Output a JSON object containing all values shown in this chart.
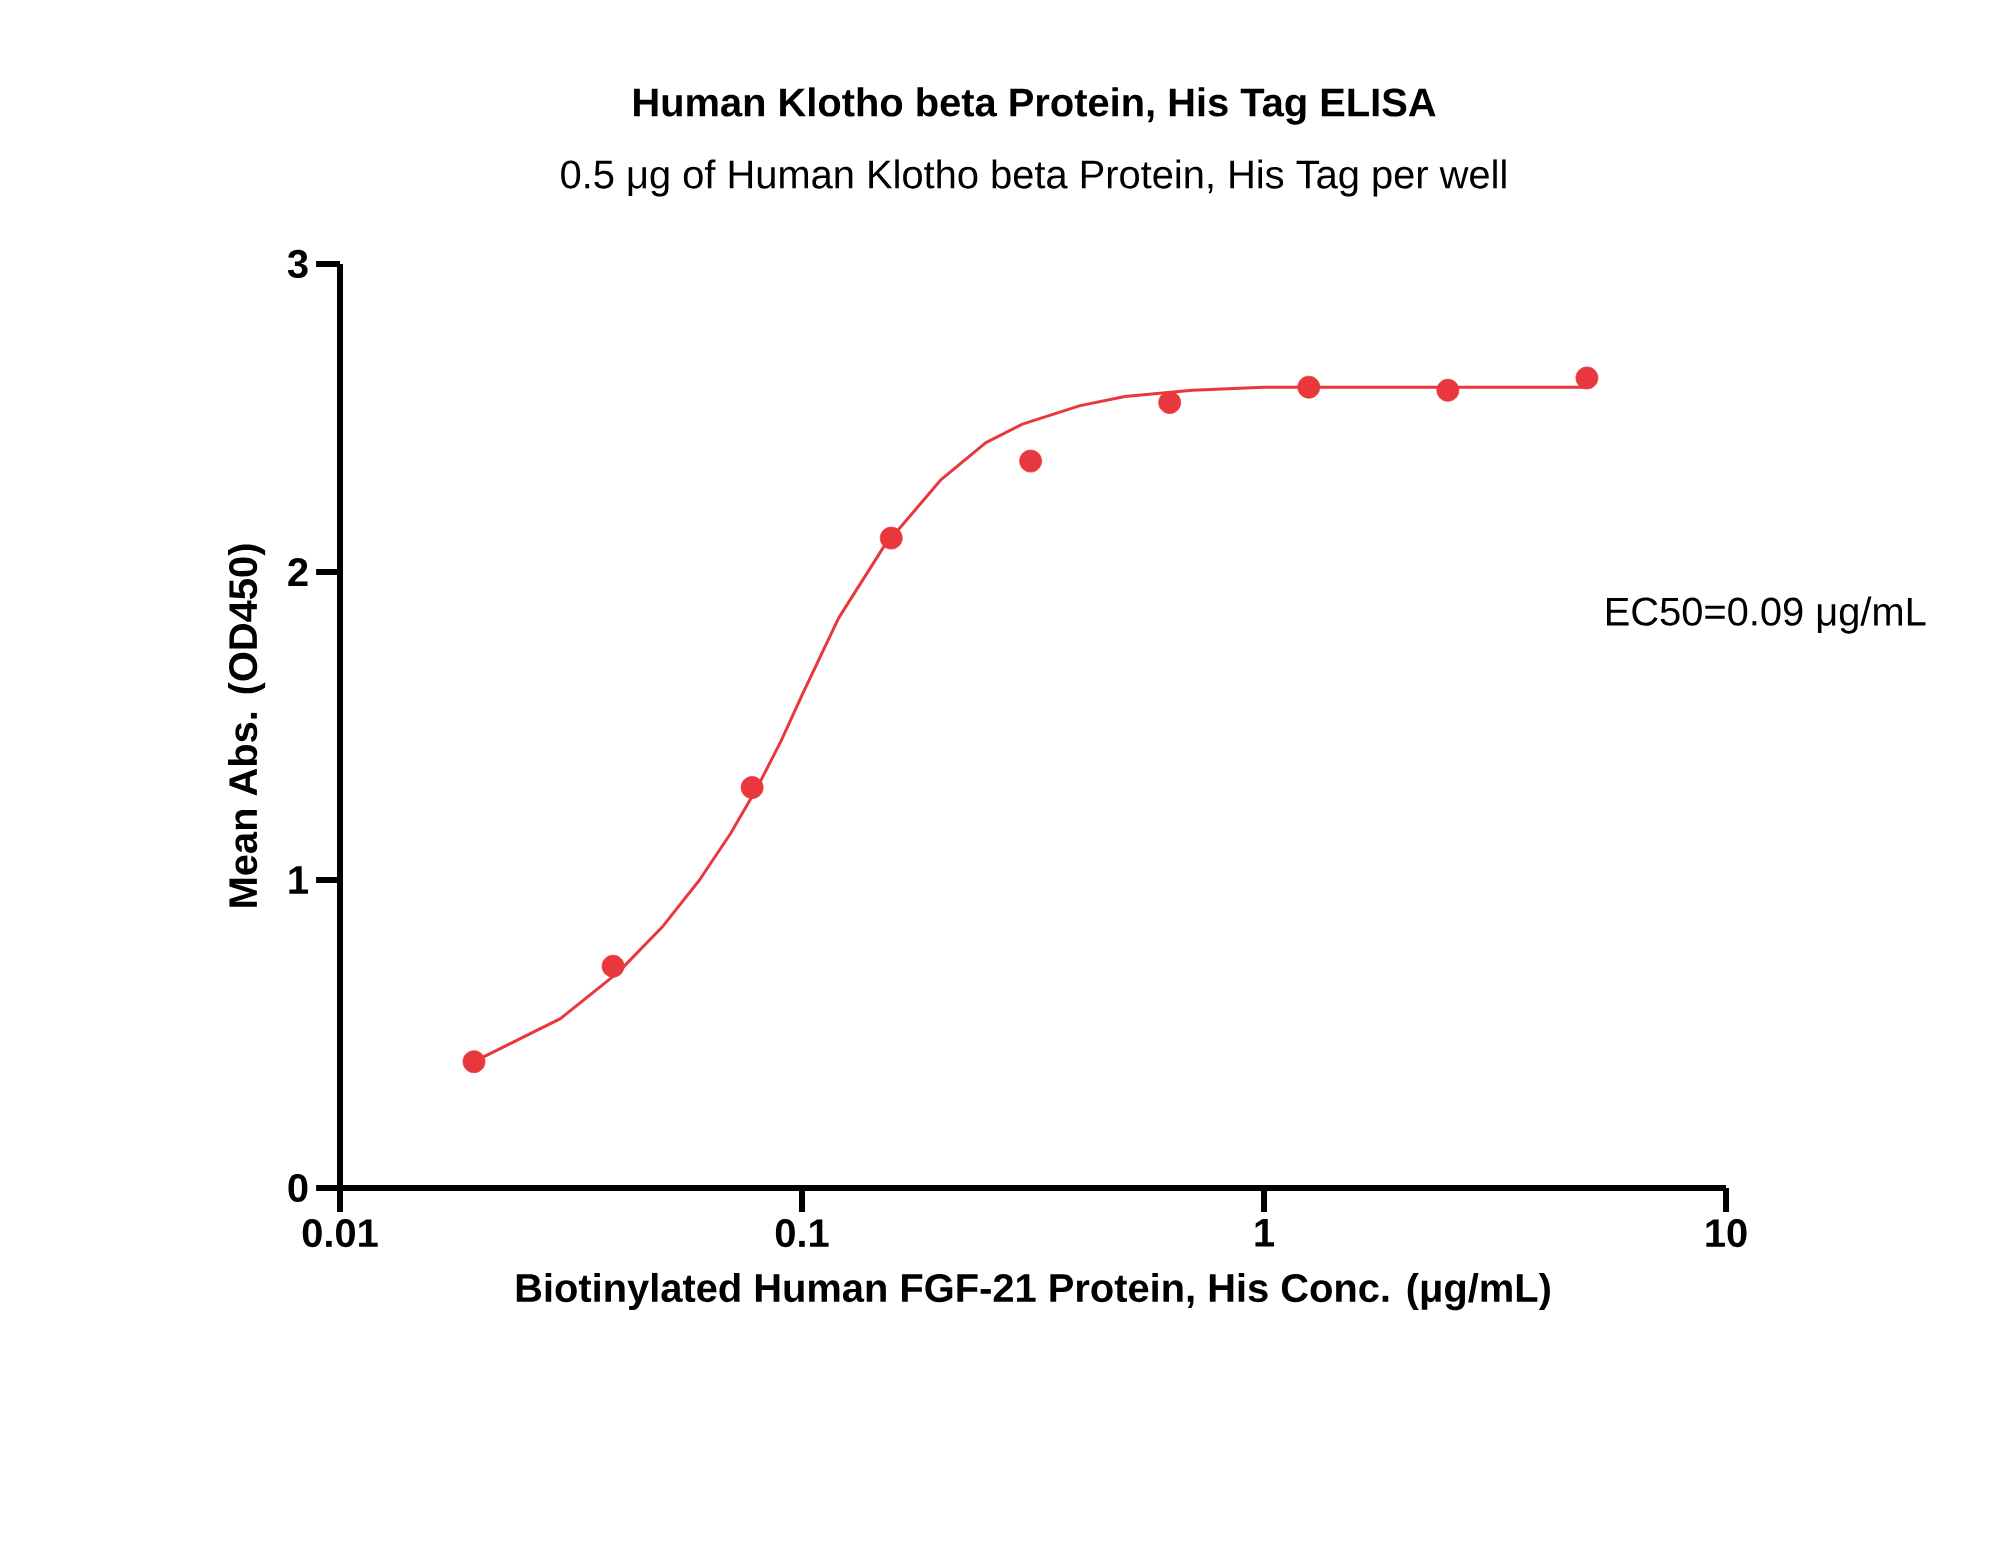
{
  "chart_data": {
    "type": "scatter",
    "title": "Human Klotho beta Protein, His Tag ELISA",
    "subtitle": "0.5 μg of Human Klotho beta Protein, His Tag per well",
    "xlabel": "Biotinylated Human FGF-21 Protein, His Conc. (μg/mL)",
    "ylabel": "Mean Abs. (OD450)",
    "log": "x",
    "xlim": [
      0.01,
      10
    ],
    "xticks": [
      {
        "value": 0.01,
        "label": "0.01"
      },
      {
        "value": 0.1,
        "label": "0.1"
      },
      1,
      10
    ],
    "ylim": [
      0,
      3
    ],
    "yticks": [
      0,
      1,
      2,
      3
    ],
    "marker": "circle",
    "annotations": [
      "EC50=0.09 μg/mL"
    ],
    "series": [
      {
        "color": "#e8383d",
        "x": [
          0.0195,
          0.039,
          0.078,
          0.156,
          0.3125,
          0.625,
          1.25,
          2.5,
          5
        ],
        "values": [
          0.41,
          0.72,
          1.3,
          2.11,
          2.36,
          2.55,
          2.6,
          2.59,
          2.63
        ]
      },
      {
        "type": "line",
        "color": "#e8383d",
        "marker": "none",
        "x": [
          0.0195,
          0.03,
          0.04,
          0.05,
          0.06,
          0.07,
          0.08,
          0.09,
          0.1,
          0.12,
          0.15,
          0.2,
          0.25,
          0.3,
          0.4,
          0.5,
          0.7,
          1,
          2,
          5
        ],
        "values": [
          0.41,
          0.55,
          0.7,
          0.85,
          1.0,
          1.15,
          1.3,
          1.45,
          1.6,
          1.85,
          2.08,
          2.3,
          2.42,
          2.48,
          2.54,
          2.57,
          2.59,
          2.6,
          2.6,
          2.6
        ]
      }
    ]
  }
}
